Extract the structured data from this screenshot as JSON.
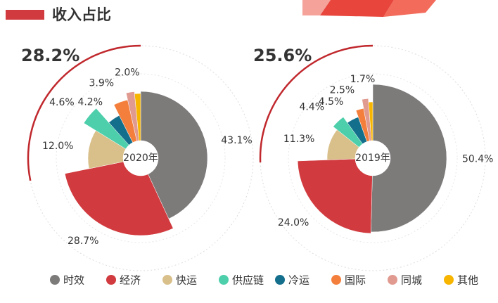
{
  "title": "收入占比",
  "chart_data": {
    "type": "pie",
    "categories": [
      "时效",
      "经济",
      "快运",
      "供应链",
      "冷运",
      "国际",
      "同城",
      "其他"
    ],
    "colors": [
      "#7d7a7a",
      "#d13a3e",
      "#d9c08a",
      "#4dcfab",
      "#146f8c",
      "#f47f3c",
      "#e09a90",
      "#f7b500"
    ],
    "series": [
      {
        "name": "2020年",
        "values": [
          43.1,
          28.7,
          12.0,
          4.6,
          4.2,
          3.9,
          2.0,
          1.5
        ],
        "value_labels": [
          "43.1%",
          "28.7%",
          "12.0%",
          "4.6%",
          "4.2%",
          "3.9%",
          "2.0%",
          null
        ],
        "group_value": 28.2,
        "group_label": "28.2%"
      },
      {
        "name": "2019年",
        "values": [
          50.4,
          24.0,
          11.3,
          4.4,
          4.5,
          2.5,
          1.7,
          1.2
        ],
        "value_labels": [
          "50.4%",
          "24.0%",
          "11.3%",
          "4.4%",
          "4.5%",
          "2.5%",
          "1.7%",
          null
        ],
        "group_value": 25.6,
        "group_label": "25.6%"
      }
    ]
  }
}
